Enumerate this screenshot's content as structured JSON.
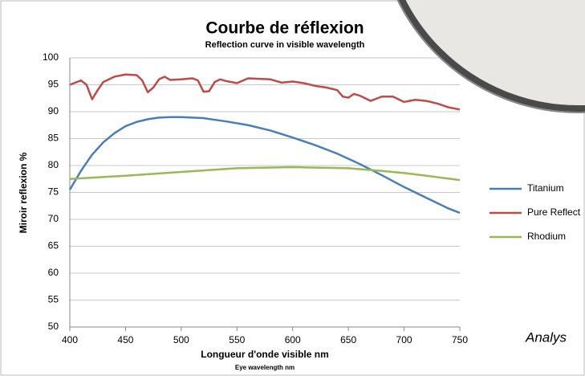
{
  "chart_data": {
    "type": "line",
    "title": "Courbe de réflexion",
    "subtitle": "Reflection curve in visible wavelength",
    "y_label": "Miroir reflexion %",
    "x_label": "Longueur d'onde visible nm",
    "x_sublabel": "Eye wavelength nm",
    "annotation": "Analys",
    "xlim": [
      400,
      750
    ],
    "xticks": [
      400,
      450,
      500,
      550,
      600,
      650,
      700,
      750
    ],
    "ylim": [
      50,
      100
    ],
    "yticks": [
      50,
      55,
      60,
      65,
      70,
      75,
      80,
      85,
      90,
      95,
      100
    ],
    "grid": true,
    "legend": "right",
    "series": [
      {
        "name": "Titanium",
        "color": "#4a7ebb",
        "x": [
          400,
          410,
          420,
          430,
          440,
          450,
          460,
          470,
          480,
          490,
          500,
          520,
          540,
          560,
          580,
          600,
          620,
          640,
          660,
          680,
          700,
          720,
          740,
          750
        ],
        "values": [
          75.5,
          79,
          82,
          84.3,
          86,
          87.3,
          88.1,
          88.6,
          88.9,
          89,
          89,
          88.8,
          88.2,
          87.5,
          86.5,
          85.2,
          83.8,
          82.2,
          80.3,
          78.2,
          76,
          74,
          72,
          71.2
        ]
      },
      {
        "name": "Pure Reflect",
        "color": "#be4b48",
        "x": [
          400,
          410,
          415,
          420,
          425,
          430,
          440,
          450,
          460,
          465,
          470,
          475,
          480,
          485,
          490,
          500,
          510,
          515,
          520,
          525,
          530,
          535,
          540,
          550,
          560,
          580,
          590,
          600,
          610,
          620,
          630,
          640,
          645,
          650,
          655,
          660,
          670,
          680,
          690,
          700,
          710,
          720,
          730,
          740,
          750
        ],
        "values": [
          95,
          95.8,
          95,
          92.3,
          94,
          95.5,
          96.5,
          96.9,
          96.8,
          95.8,
          93.6,
          94.5,
          96,
          96.5,
          95.9,
          96,
          96.2,
          95.8,
          93.7,
          93.8,
          95.5,
          96,
          95.7,
          95.3,
          96.2,
          96,
          95.4,
          95.6,
          95.3,
          94.8,
          94.5,
          94,
          92.8,
          92.6,
          93.3,
          93,
          92,
          92.8,
          92.8,
          91.8,
          92.2,
          92,
          91.5,
          90.8,
          90.4
        ]
      },
      {
        "name": "Rhodium",
        "color": "#98b954",
        "x": [
          400,
          450,
          500,
          550,
          600,
          650,
          680,
          700,
          720,
          750
        ],
        "values": [
          77.5,
          78.1,
          78.8,
          79.5,
          79.7,
          79.5,
          79,
          78.6,
          78.1,
          77.3
        ]
      }
    ]
  }
}
